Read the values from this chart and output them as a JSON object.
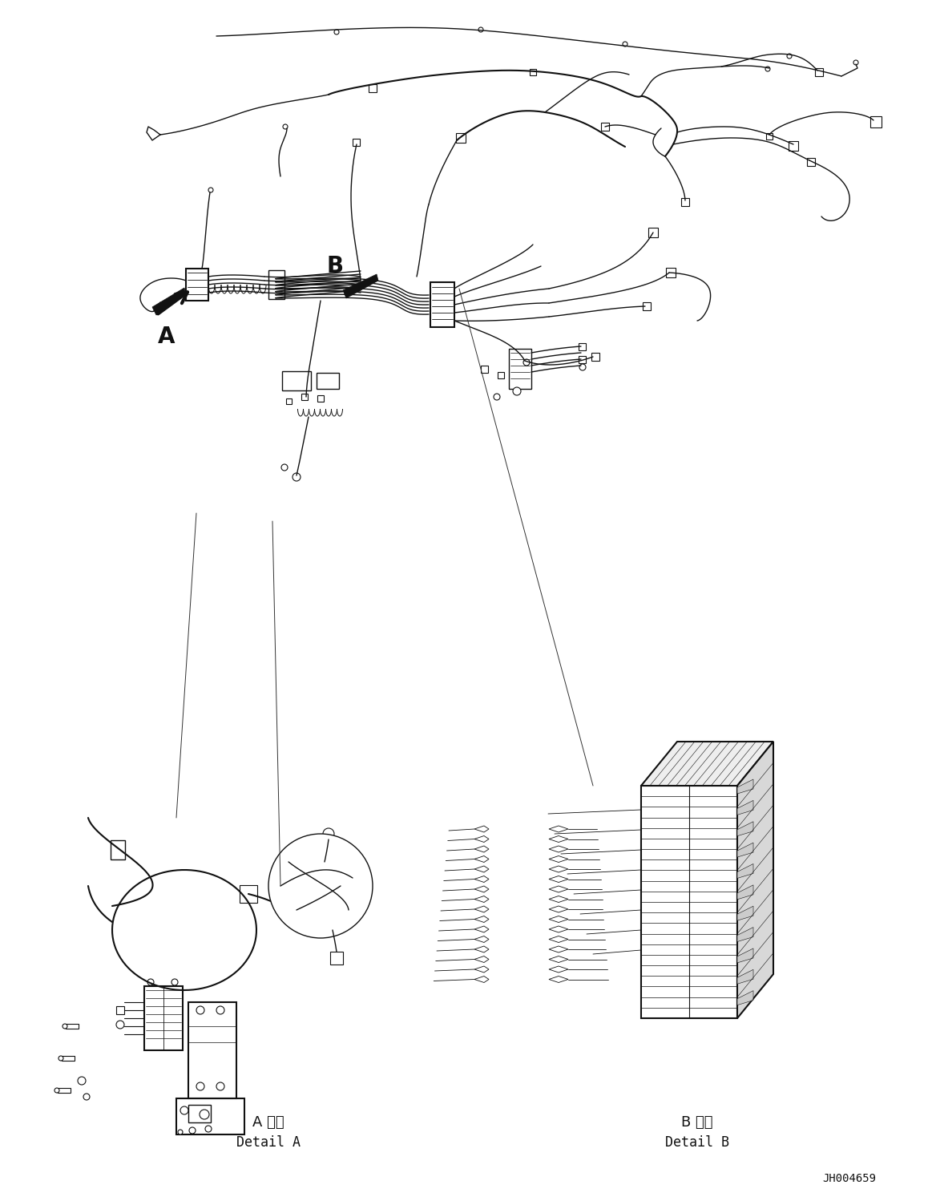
{
  "background_color": "#ffffff",
  "figure_width": 11.63,
  "figure_height": 14.88,
  "dpi": 100,
  "text_A_label": "A 詳細",
  "text_A_detail": "Detail A",
  "text_B_label": "B 詳細",
  "text_B_detail": "Detail B",
  "text_id": "JH004659",
  "label_A": "A",
  "label_B": "B"
}
